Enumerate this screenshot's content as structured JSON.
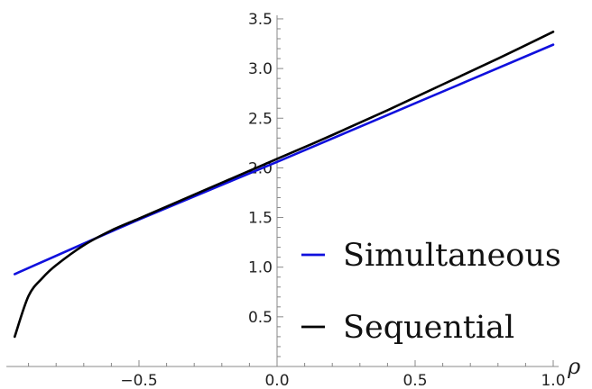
{
  "chart_data": {
    "type": "line",
    "xlabel": "ρ",
    "ylabel": "",
    "xlim": [
      -0.98,
      1.02
    ],
    "ylim": [
      0.0,
      3.5
    ],
    "x_ticks": [
      {
        "value": -0.5,
        "label": "−0.5"
      },
      {
        "value": 0.0,
        "label": "0.0"
      },
      {
        "value": 0.5,
        "label": "0.5"
      },
      {
        "value": 1.0,
        "label": "1.0"
      }
    ],
    "y_ticks": [
      {
        "value": 0.5,
        "label": "0.5"
      },
      {
        "value": 1.0,
        "label": "1.0"
      },
      {
        "value": 1.5,
        "label": "1.5"
      },
      {
        "value": 2.0,
        "label": "2.0"
      },
      {
        "value": 2.5,
        "label": "2.5"
      },
      {
        "value": 3.0,
        "label": "3.0"
      },
      {
        "value": 3.5,
        "label": "3.5"
      }
    ],
    "grid": false,
    "legend_position": "bottom-right",
    "series": [
      {
        "name": "Simultaneous",
        "color": "#1010dd",
        "x": [
          -0.95,
          -0.5,
          0.0,
          0.5,
          1.0
        ],
        "y": [
          0.93,
          1.48,
          2.06,
          2.65,
          3.24
        ]
      },
      {
        "name": "Sequential",
        "color": "#000000",
        "x": [
          -0.95,
          -0.9,
          -0.85,
          -0.8,
          -0.7,
          -0.6,
          -0.5,
          -0.4,
          -0.3,
          -0.2,
          -0.1,
          0.0,
          0.2,
          0.4,
          0.6,
          0.8,
          1.0
        ],
        "y": [
          0.3,
          0.71,
          0.89,
          1.02,
          1.22,
          1.37,
          1.49,
          1.61,
          1.73,
          1.85,
          1.97,
          2.09,
          2.33,
          2.58,
          2.84,
          3.1,
          3.37
        ]
      }
    ]
  }
}
